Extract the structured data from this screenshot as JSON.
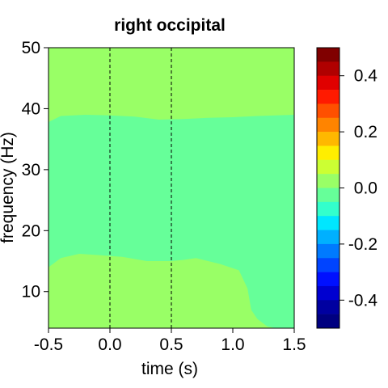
{
  "chart_data": {
    "type": "heatmap",
    "title": "right occipital",
    "xlabel": "time (s)",
    "ylabel": "frequency (Hz)",
    "xlim": [
      -0.5,
      1.5
    ],
    "ylim": [
      4,
      50
    ],
    "x_ticks": [
      "-0.5",
      "0.0",
      "0.5",
      "1.0",
      "1.5"
    ],
    "x_tick_values": [
      -0.5,
      0.0,
      0.5,
      1.0,
      1.5
    ],
    "y_ticks": [
      "10",
      "20",
      "30",
      "40",
      "50"
    ],
    "y_tick_values": [
      10,
      20,
      30,
      40,
      50
    ],
    "event_lines_x": [
      0.0,
      0.5
    ],
    "regions": [
      {
        "value": 0.05,
        "color": "#99ff66",
        "description": "background"
      },
      {
        "value": -0.025,
        "color": "#66ff99",
        "upper_boundary": [
          [
            -0.5,
            37.8
          ],
          [
            -0.4,
            38.8
          ],
          [
            -0.2,
            39.0
          ],
          [
            0.0,
            38.9
          ],
          [
            0.2,
            38.7
          ],
          [
            0.4,
            38.2
          ],
          [
            0.6,
            38.3
          ],
          [
            0.8,
            38.5
          ],
          [
            1.0,
            38.6
          ],
          [
            1.2,
            38.8
          ],
          [
            1.5,
            39.0
          ]
        ],
        "lower_boundary": [
          [
            -0.5,
            14.0
          ],
          [
            -0.4,
            15.5
          ],
          [
            -0.25,
            16.2
          ],
          [
            -0.1,
            16.0
          ],
          [
            0.1,
            15.7
          ],
          [
            0.3,
            15.0
          ],
          [
            0.5,
            15.0
          ],
          [
            0.6,
            15.2
          ],
          [
            0.7,
            15.5
          ],
          [
            0.9,
            14.5
          ],
          [
            1.05,
            13.5
          ],
          [
            1.12,
            10.5
          ],
          [
            1.15,
            7.0
          ],
          [
            1.2,
            5.5
          ],
          [
            1.28,
            4.3
          ],
          [
            1.35,
            4.0
          ]
        ]
      }
    ],
    "colorbar": {
      "range": [
        -0.5,
        0.5
      ],
      "ticks": [
        "0.4",
        "0.2",
        "0.0",
        "-0.2",
        "-0.4"
      ],
      "tick_values": [
        0.4,
        0.2,
        0.0,
        -0.2,
        -0.4
      ],
      "colors_top_to_bottom": [
        "#800000",
        "#b00000",
        "#e00000",
        "#ff1a00",
        "#ff5000",
        "#ff8400",
        "#ffb800",
        "#ffee00",
        "#ccff33",
        "#99ff66",
        "#66ff99",
        "#33ffcc",
        "#00e6ff",
        "#00b0ff",
        "#007aff",
        "#0044ff",
        "#0010ff",
        "#0000d0",
        "#0000a0",
        "#000080"
      ]
    }
  }
}
